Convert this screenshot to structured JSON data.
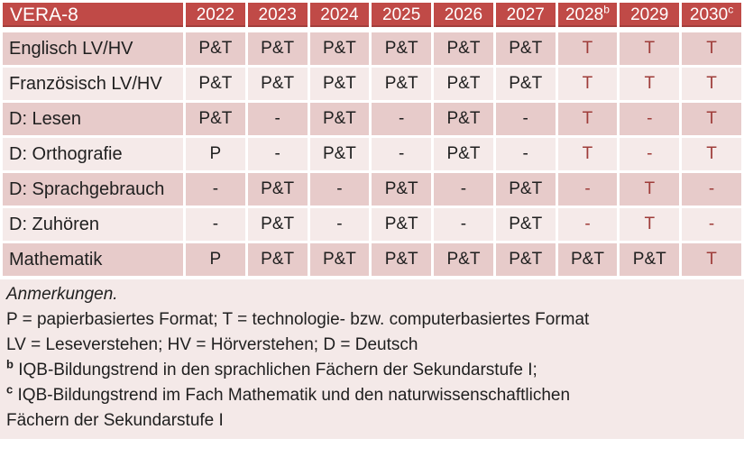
{
  "colors": {
    "header_bg": "#c04a47",
    "header_text": "#ffffff",
    "row_dark_bg": "#e7cbca",
    "row_light_bg": "#f5eae9",
    "notes_bg": "#f4e9e8",
    "body_text": "#1f1f1f",
    "accent_text": "#9e3c39"
  },
  "table": {
    "title": "VERA-8",
    "columns": [
      {
        "text": "2022",
        "sup": ""
      },
      {
        "text": "2023",
        "sup": ""
      },
      {
        "text": "2024",
        "sup": ""
      },
      {
        "text": "2025",
        "sup": ""
      },
      {
        "text": "2026",
        "sup": ""
      },
      {
        "text": "2027",
        "sup": ""
      },
      {
        "text": "2028",
        "sup": "b"
      },
      {
        "text": "2029",
        "sup": ""
      },
      {
        "text": "2030",
        "sup": "c"
      }
    ],
    "rows": [
      {
        "label": "Englisch LV/HV",
        "values": [
          "P&T",
          "P&T",
          "P&T",
          "P&T",
          "P&T",
          "P&T",
          "T",
          "T",
          "T"
        ]
      },
      {
        "label": "Französisch LV/HV",
        "values": [
          "P&T",
          "P&T",
          "P&T",
          "P&T",
          "P&T",
          "P&T",
          "T",
          "T",
          "T"
        ]
      },
      {
        "label": "D: Lesen",
        "values": [
          "P&T",
          "-",
          "P&T",
          "-",
          "P&T",
          "-",
          "T",
          "-",
          "T"
        ]
      },
      {
        "label": "D: Orthografie",
        "values": [
          "P",
          "-",
          "P&T",
          "-",
          "P&T",
          "-",
          "T",
          "-",
          "T"
        ]
      },
      {
        "label": "D: Sprachgebrauch",
        "values": [
          "-",
          "P&T",
          "-",
          "P&T",
          "-",
          "P&T",
          "-",
          "T",
          "-"
        ]
      },
      {
        "label": "D: Zuhören",
        "values": [
          "-",
          "P&T",
          "-",
          "P&T",
          "-",
          "P&T",
          "-",
          "T",
          "-"
        ]
      },
      {
        "label": "Mathematik",
        "values": [
          "P",
          "P&T",
          "P&T",
          "P&T",
          "P&T",
          "P&T",
          "P&T",
          "P&T",
          "T"
        ]
      }
    ]
  },
  "notes": {
    "heading": "Anmerkungen.",
    "formats": "P = papierbasiertes Format; T = technologie- bzw. computerbasiertes Format",
    "abbreviations": "LV = Leseverstehen; HV = Hörverstehen; D = Deutsch",
    "footnote_b": {
      "marker": "b",
      "text": "IQB-Bildungstrend in den sprachlichen Fächern der Sekundarstufe I;"
    },
    "footnote_c": {
      "marker": "c",
      "text": "IQB-Bildungstrend im Fach Mathematik und den naturwissenschaftlichen",
      "text2": "Fächern der Sekundarstufe I"
    }
  }
}
